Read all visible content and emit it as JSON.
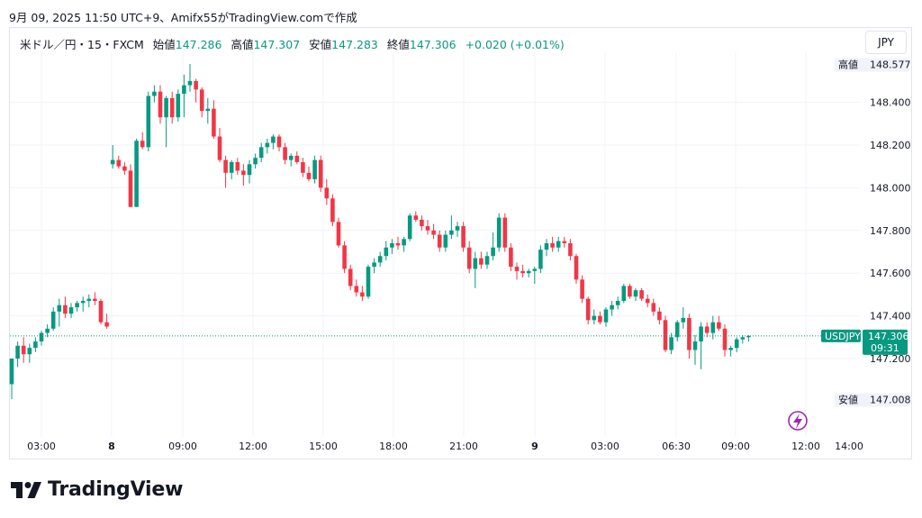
{
  "caption": "9月 09, 2025 11:50 UTC+9、Amifx55がTradingView.comで作成",
  "header": {
    "symbol": "米ドル／円・15・FXCM",
    "open_label": "始値",
    "open": "147.286",
    "high_label": "高値",
    "high": "147.307",
    "low_label": "安値",
    "low": "147.283",
    "close_label": "終値",
    "close": "147.306",
    "change": "+0.020 (+0.01%)"
  },
  "currency_button": "JPY",
  "brand": "TradingView",
  "colors": {
    "up": "#089981",
    "down": "#f23645",
    "grid": "#f0f3fa",
    "text": "#131722",
    "accent": "#9c27b0"
  },
  "chart_data": {
    "type": "candlestick",
    "y_ticks": [
      "148.400",
      "148.200",
      "148.000",
      "147.800",
      "147.600",
      "147.400",
      "147.200"
    ],
    "x_ticks": [
      "03:00",
      "8",
      "09:00",
      "12:00",
      "15:00",
      "18:00",
      "21:00",
      "9",
      "03:00",
      "06:30",
      "09:00",
      "12:00",
      "14:00"
    ],
    "x_ticks_bold": [
      "8",
      "9"
    ],
    "high_marker": {
      "label": "高値",
      "value": "148.577"
    },
    "low_marker": {
      "label": "安値",
      "value": "147.008"
    },
    "last_price": {
      "symbol": "USDJPY",
      "value": "147.306",
      "countdown": "09:31"
    },
    "candles": [
      {
        "o": 147.08,
        "h": 147.2,
        "l": 147.01,
        "c": 147.2
      },
      {
        "o": 147.2,
        "h": 147.28,
        "l": 147.16,
        "c": 147.26
      },
      {
        "o": 147.26,
        "h": 147.3,
        "l": 147.18,
        "c": 147.22
      },
      {
        "o": 147.22,
        "h": 147.27,
        "l": 147.18,
        "c": 147.25
      },
      {
        "o": 147.25,
        "h": 147.3,
        "l": 147.23,
        "c": 147.28
      },
      {
        "o": 147.28,
        "h": 147.33,
        "l": 147.26,
        "c": 147.32
      },
      {
        "o": 147.32,
        "h": 147.36,
        "l": 147.3,
        "c": 147.34
      },
      {
        "o": 147.34,
        "h": 147.44,
        "l": 147.33,
        "c": 147.42
      },
      {
        "o": 147.42,
        "h": 147.48,
        "l": 147.35,
        "c": 147.45
      },
      {
        "o": 147.45,
        "h": 147.49,
        "l": 147.39,
        "c": 147.41
      },
      {
        "o": 147.41,
        "h": 147.46,
        "l": 147.39,
        "c": 147.44
      },
      {
        "o": 147.44,
        "h": 147.47,
        "l": 147.42,
        "c": 147.46
      },
      {
        "o": 147.46,
        "h": 147.49,
        "l": 147.42,
        "c": 147.47
      },
      {
        "o": 147.47,
        "h": 147.5,
        "l": 147.44,
        "c": 147.48
      },
      {
        "o": 147.48,
        "h": 147.51,
        "l": 147.45,
        "c": 147.47
      },
      {
        "o": 147.47,
        "h": 147.48,
        "l": 147.36,
        "c": 147.37
      },
      {
        "o": 147.37,
        "h": 147.41,
        "l": 147.34,
        "c": 147.35
      },
      {
        "o": 148.11,
        "h": 148.2,
        "l": 148.09,
        "c": 148.13
      },
      {
        "o": 148.13,
        "h": 148.15,
        "l": 148.09,
        "c": 148.1
      },
      {
        "o": 148.1,
        "h": 148.12,
        "l": 148.06,
        "c": 148.08
      },
      {
        "o": 148.08,
        "h": 148.11,
        "l": 147.91,
        "c": 147.91
      },
      {
        "o": 147.91,
        "h": 148.23,
        "l": 147.91,
        "c": 148.22
      },
      {
        "o": 148.22,
        "h": 148.26,
        "l": 148.18,
        "c": 148.19
      },
      {
        "o": 148.19,
        "h": 148.45,
        "l": 148.17,
        "c": 148.43
      },
      {
        "o": 148.43,
        "h": 148.48,
        "l": 148.4,
        "c": 148.45
      },
      {
        "o": 148.45,
        "h": 148.48,
        "l": 148.3,
        "c": 148.33
      },
      {
        "o": 148.33,
        "h": 148.43,
        "l": 148.19,
        "c": 148.42
      },
      {
        "o": 148.42,
        "h": 148.45,
        "l": 148.3,
        "c": 148.33
      },
      {
        "o": 148.33,
        "h": 148.46,
        "l": 148.31,
        "c": 148.44
      },
      {
        "o": 148.44,
        "h": 148.53,
        "l": 148.33,
        "c": 148.48
      },
      {
        "o": 148.48,
        "h": 148.58,
        "l": 148.45,
        "c": 148.5
      },
      {
        "o": 148.5,
        "h": 148.51,
        "l": 148.4,
        "c": 148.46
      },
      {
        "o": 148.46,
        "h": 148.47,
        "l": 148.33,
        "c": 148.36
      },
      {
        "o": 148.36,
        "h": 148.42,
        "l": 148.3,
        "c": 148.37
      },
      {
        "o": 148.37,
        "h": 148.41,
        "l": 148.23,
        "c": 148.24
      },
      {
        "o": 148.24,
        "h": 148.28,
        "l": 148.12,
        "c": 148.13
      },
      {
        "o": 148.13,
        "h": 148.15,
        "l": 148.0,
        "c": 148.07
      },
      {
        "o": 148.07,
        "h": 148.13,
        "l": 148.04,
        "c": 148.12
      },
      {
        "o": 148.12,
        "h": 148.14,
        "l": 148.06,
        "c": 148.08
      },
      {
        "o": 148.08,
        "h": 148.11,
        "l": 148.01,
        "c": 148.06
      },
      {
        "o": 148.06,
        "h": 148.13,
        "l": 148.02,
        "c": 148.11
      },
      {
        "o": 148.11,
        "h": 148.16,
        "l": 148.09,
        "c": 148.14
      },
      {
        "o": 148.14,
        "h": 148.21,
        "l": 148.12,
        "c": 148.19
      },
      {
        "o": 148.19,
        "h": 148.23,
        "l": 148.16,
        "c": 148.21
      },
      {
        "o": 148.21,
        "h": 148.25,
        "l": 148.18,
        "c": 148.24
      },
      {
        "o": 148.24,
        "h": 148.25,
        "l": 148.17,
        "c": 148.19
      },
      {
        "o": 148.19,
        "h": 148.21,
        "l": 148.11,
        "c": 148.13
      },
      {
        "o": 148.13,
        "h": 148.16,
        "l": 148.1,
        "c": 148.15
      },
      {
        "o": 148.15,
        "h": 148.17,
        "l": 148.11,
        "c": 148.12
      },
      {
        "o": 148.12,
        "h": 148.14,
        "l": 148.05,
        "c": 148.07
      },
      {
        "o": 148.07,
        "h": 148.1,
        "l": 148.03,
        "c": 148.04
      },
      {
        "o": 148.04,
        "h": 148.15,
        "l": 148.02,
        "c": 148.13
      },
      {
        "o": 148.13,
        "h": 148.15,
        "l": 147.98,
        "c": 148.0
      },
      {
        "o": 148.0,
        "h": 148.04,
        "l": 147.92,
        "c": 147.95
      },
      {
        "o": 147.95,
        "h": 147.97,
        "l": 147.82,
        "c": 147.84
      },
      {
        "o": 147.84,
        "h": 147.86,
        "l": 147.72,
        "c": 147.73
      },
      {
        "o": 147.73,
        "h": 147.75,
        "l": 147.6,
        "c": 147.62
      },
      {
        "o": 147.62,
        "h": 147.64,
        "l": 147.52,
        "c": 147.54
      },
      {
        "o": 147.54,
        "h": 147.57,
        "l": 147.49,
        "c": 147.51
      },
      {
        "o": 147.51,
        "h": 147.54,
        "l": 147.47,
        "c": 147.49
      },
      {
        "o": 147.49,
        "h": 147.64,
        "l": 147.48,
        "c": 147.63
      },
      {
        "o": 147.63,
        "h": 147.67,
        "l": 147.6,
        "c": 147.65
      },
      {
        "o": 147.65,
        "h": 147.7,
        "l": 147.63,
        "c": 147.68
      },
      {
        "o": 147.68,
        "h": 147.75,
        "l": 147.66,
        "c": 147.72
      },
      {
        "o": 147.72,
        "h": 147.76,
        "l": 147.69,
        "c": 147.74
      },
      {
        "o": 147.74,
        "h": 147.77,
        "l": 147.71,
        "c": 147.73
      },
      {
        "o": 147.73,
        "h": 147.77,
        "l": 147.7,
        "c": 147.76
      },
      {
        "o": 147.76,
        "h": 147.88,
        "l": 147.75,
        "c": 147.87
      },
      {
        "o": 147.87,
        "h": 147.89,
        "l": 147.84,
        "c": 147.85
      },
      {
        "o": 147.85,
        "h": 147.87,
        "l": 147.8,
        "c": 147.82
      },
      {
        "o": 147.82,
        "h": 147.85,
        "l": 147.78,
        "c": 147.8
      },
      {
        "o": 147.8,
        "h": 147.83,
        "l": 147.76,
        "c": 147.78
      },
      {
        "o": 147.78,
        "h": 147.8,
        "l": 147.7,
        "c": 147.72
      },
      {
        "o": 147.72,
        "h": 147.8,
        "l": 147.7,
        "c": 147.78
      },
      {
        "o": 147.78,
        "h": 147.87,
        "l": 147.76,
        "c": 147.8
      },
      {
        "o": 147.8,
        "h": 147.84,
        "l": 147.77,
        "c": 147.82
      },
      {
        "o": 147.82,
        "h": 147.84,
        "l": 147.7,
        "c": 147.72
      },
      {
        "o": 147.72,
        "h": 147.75,
        "l": 147.6,
        "c": 147.62
      },
      {
        "o": 147.62,
        "h": 147.7,
        "l": 147.53,
        "c": 147.67
      },
      {
        "o": 147.67,
        "h": 147.7,
        "l": 147.62,
        "c": 147.64
      },
      {
        "o": 147.64,
        "h": 147.7,
        "l": 147.62,
        "c": 147.68
      },
      {
        "o": 147.68,
        "h": 147.79,
        "l": 147.66,
        "c": 147.72
      },
      {
        "o": 147.72,
        "h": 147.88,
        "l": 147.7,
        "c": 147.86
      },
      {
        "o": 147.86,
        "h": 147.88,
        "l": 147.7,
        "c": 147.72
      },
      {
        "o": 147.72,
        "h": 147.74,
        "l": 147.61,
        "c": 147.63
      },
      {
        "o": 147.63,
        "h": 147.65,
        "l": 147.57,
        "c": 147.61
      },
      {
        "o": 147.61,
        "h": 147.64,
        "l": 147.58,
        "c": 147.6
      },
      {
        "o": 147.6,
        "h": 147.62,
        "l": 147.58,
        "c": 147.61
      },
      {
        "o": 147.61,
        "h": 147.63,
        "l": 147.55,
        "c": 147.62
      },
      {
        "o": 147.62,
        "h": 147.73,
        "l": 147.6,
        "c": 147.71
      },
      {
        "o": 147.71,
        "h": 147.76,
        "l": 147.68,
        "c": 147.74
      },
      {
        "o": 147.74,
        "h": 147.77,
        "l": 147.7,
        "c": 147.72
      },
      {
        "o": 147.72,
        "h": 147.77,
        "l": 147.7,
        "c": 147.75
      },
      {
        "o": 147.75,
        "h": 147.77,
        "l": 147.72,
        "c": 147.74
      },
      {
        "o": 147.74,
        "h": 147.76,
        "l": 147.66,
        "c": 147.68
      },
      {
        "o": 147.68,
        "h": 147.69,
        "l": 147.55,
        "c": 147.57
      },
      {
        "o": 147.57,
        "h": 147.59,
        "l": 147.46,
        "c": 147.48
      },
      {
        "o": 147.48,
        "h": 147.49,
        "l": 147.36,
        "c": 147.38
      },
      {
        "o": 147.38,
        "h": 147.43,
        "l": 147.36,
        "c": 147.4
      },
      {
        "o": 147.4,
        "h": 147.42,
        "l": 147.36,
        "c": 147.37
      },
      {
        "o": 147.37,
        "h": 147.44,
        "l": 147.35,
        "c": 147.43
      },
      {
        "o": 147.43,
        "h": 147.47,
        "l": 147.4,
        "c": 147.45
      },
      {
        "o": 147.45,
        "h": 147.49,
        "l": 147.43,
        "c": 147.47
      },
      {
        "o": 147.47,
        "h": 147.55,
        "l": 147.46,
        "c": 147.54
      },
      {
        "o": 147.54,
        "h": 147.55,
        "l": 147.48,
        "c": 147.49
      },
      {
        "o": 147.49,
        "h": 147.53,
        "l": 147.47,
        "c": 147.52
      },
      {
        "o": 147.52,
        "h": 147.53,
        "l": 147.47,
        "c": 147.48
      },
      {
        "o": 147.48,
        "h": 147.5,
        "l": 147.44,
        "c": 147.46
      },
      {
        "o": 147.46,
        "h": 147.48,
        "l": 147.4,
        "c": 147.42
      },
      {
        "o": 147.42,
        "h": 147.44,
        "l": 147.36,
        "c": 147.38
      },
      {
        "o": 147.38,
        "h": 147.4,
        "l": 147.23,
        "c": 147.24
      },
      {
        "o": 147.24,
        "h": 147.32,
        "l": 147.22,
        "c": 147.3
      },
      {
        "o": 147.3,
        "h": 147.38,
        "l": 147.28,
        "c": 147.37
      },
      {
        "o": 147.37,
        "h": 147.44,
        "l": 147.34,
        "c": 147.39
      },
      {
        "o": 147.39,
        "h": 147.41,
        "l": 147.2,
        "c": 147.24
      },
      {
        "o": 147.24,
        "h": 147.31,
        "l": 147.17,
        "c": 147.28
      },
      {
        "o": 147.28,
        "h": 147.37,
        "l": 147.15,
        "c": 147.35
      },
      {
        "o": 147.35,
        "h": 147.37,
        "l": 147.3,
        "c": 147.32
      },
      {
        "o": 147.32,
        "h": 147.4,
        "l": 147.29,
        "c": 147.37
      },
      {
        "o": 147.37,
        "h": 147.4,
        "l": 147.33,
        "c": 147.34
      },
      {
        "o": 147.34,
        "h": 147.36,
        "l": 147.21,
        "c": 147.24
      },
      {
        "o": 147.24,
        "h": 147.26,
        "l": 147.21,
        "c": 147.25
      },
      {
        "o": 147.25,
        "h": 147.3,
        "l": 147.23,
        "c": 147.29
      },
      {
        "o": 147.29,
        "h": 147.31,
        "l": 147.27,
        "c": 147.3
      },
      {
        "o": 147.3,
        "h": 147.31,
        "l": 147.28,
        "c": 147.306
      }
    ]
  }
}
